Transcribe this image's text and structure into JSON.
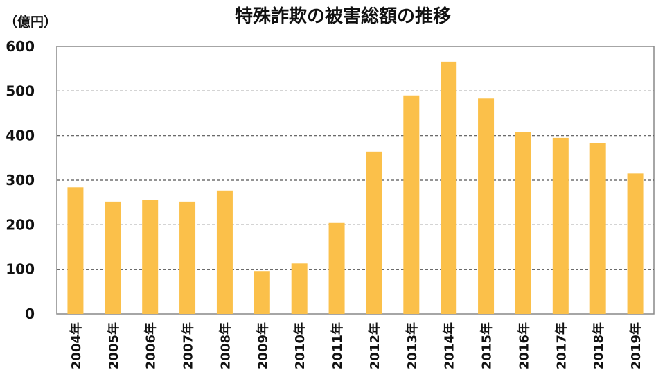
{
  "chart_data": {
    "type": "bar",
    "title": "特殊詐欺の被害総額の推移",
    "unit_label": "（億円）",
    "xlabel": "",
    "ylabel": "",
    "categories": [
      "2004年",
      "2005年",
      "2006年",
      "2007年",
      "2008年",
      "2009年",
      "2010年",
      "2011年",
      "2012年",
      "2013年",
      "2014年",
      "2015年",
      "2016年",
      "2017年",
      "2018年",
      "2019年"
    ],
    "values": [
      284,
      252,
      256,
      252,
      277,
      96,
      113,
      204,
      364,
      490,
      566,
      483,
      408,
      395,
      383,
      315
    ],
    "ylim": [
      0,
      600
    ],
    "yticks": [
      "0",
      "100",
      "200",
      "300",
      "400",
      "500",
      "600"
    ],
    "grid": "horizontal dashed",
    "legend": "none",
    "colors": {
      "bar": "#FBC04A",
      "grid": "#555555",
      "axis": "#888888"
    }
  }
}
